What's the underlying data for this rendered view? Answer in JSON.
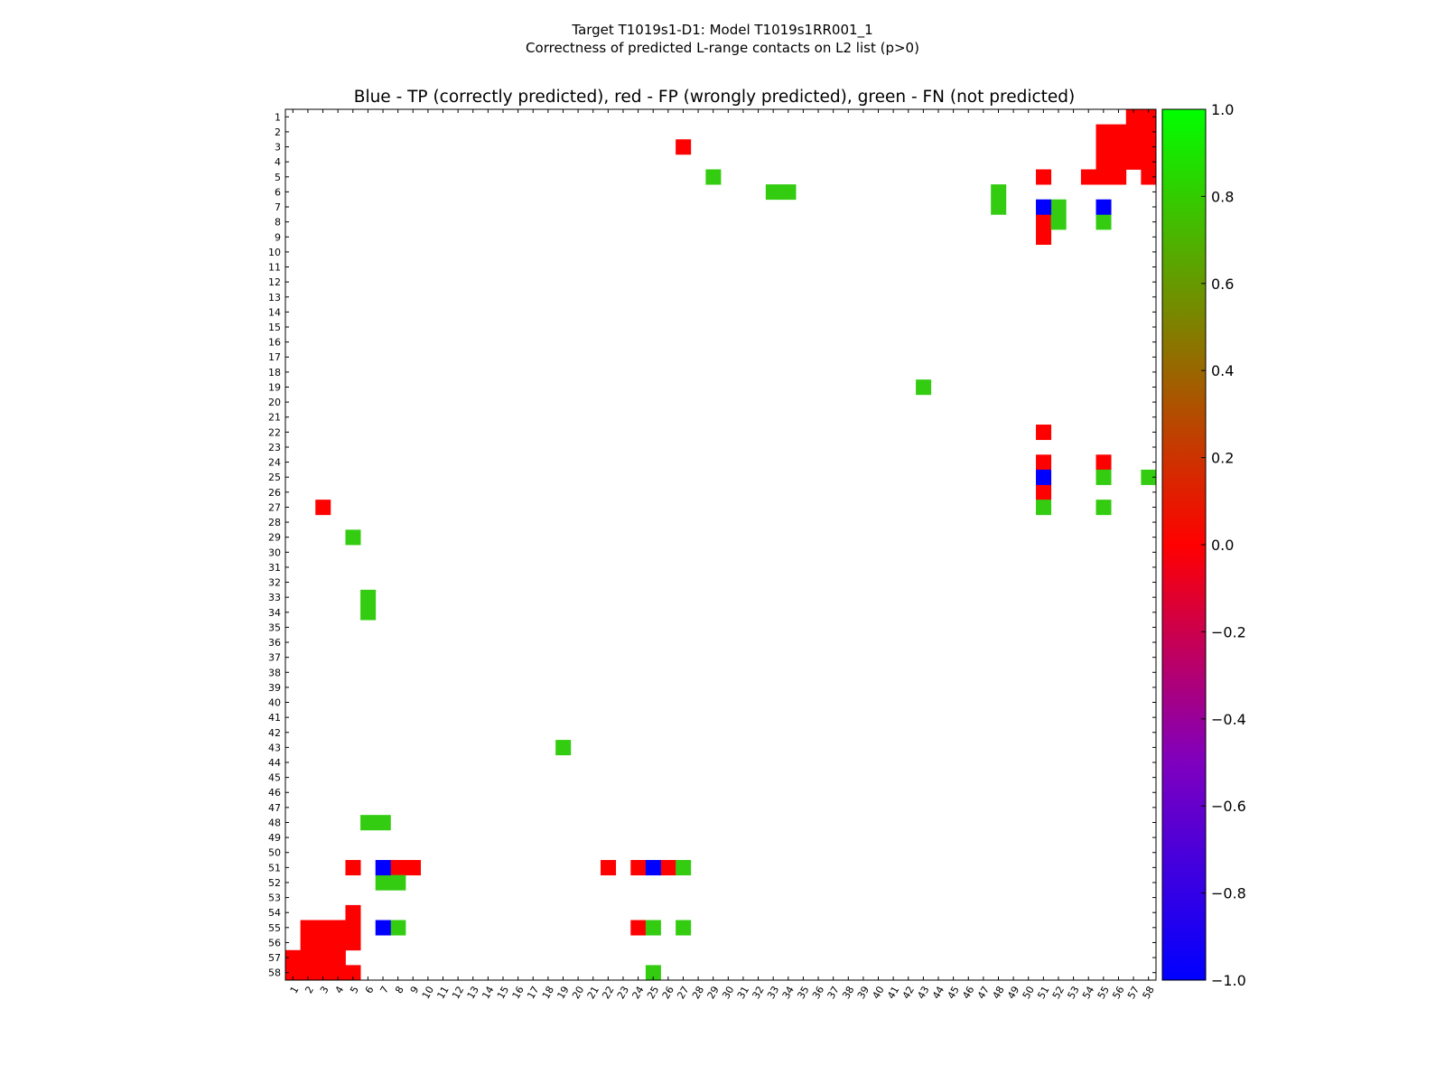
{
  "header": {
    "title_line1": "Target T1019s1-D1: Model T1019s1RR001_1",
    "title_line2": "Correctness of predicted L-range contacts on L2 list (p>0)"
  },
  "chart_data": {
    "type": "heatmap",
    "title": "Blue - TP (correctly predicted), red - FP (wrongly predicted), green - FN (not predicted)",
    "n": 58,
    "x_ticks": [
      1,
      2,
      3,
      4,
      5,
      6,
      7,
      8,
      9,
      10,
      11,
      12,
      13,
      14,
      15,
      16,
      17,
      18,
      19,
      20,
      21,
      22,
      23,
      24,
      25,
      26,
      27,
      28,
      29,
      30,
      31,
      32,
      33,
      34,
      35,
      36,
      37,
      38,
      39,
      40,
      41,
      42,
      43,
      44,
      45,
      46,
      47,
      48,
      49,
      50,
      51,
      52,
      53,
      54,
      55,
      56,
      57,
      58
    ],
    "y_ticks": [
      1,
      2,
      3,
      4,
      5,
      6,
      7,
      8,
      9,
      10,
      11,
      12,
      13,
      14,
      15,
      16,
      17,
      18,
      19,
      20,
      21,
      22,
      23,
      24,
      25,
      26,
      27,
      28,
      29,
      30,
      31,
      32,
      33,
      34,
      35,
      36,
      37,
      38,
      39,
      40,
      41,
      42,
      43,
      44,
      45,
      46,
      47,
      48,
      49,
      50,
      51,
      52,
      53,
      54,
      55,
      56,
      57,
      58
    ],
    "colorbar": {
      "min": -1.0,
      "max": 1.0,
      "ticks": [
        "1.0",
        "0.8",
        "0.6",
        "0.4",
        "0.2",
        "0.0",
        "−0.2",
        "−0.4",
        "−0.6",
        "−0.8",
        "−1.0"
      ],
      "tick_values": [
        1.0,
        0.8,
        0.6,
        0.4,
        0.2,
        0.0,
        -0.2,
        -0.4,
        -0.6,
        -0.8,
        -1.0
      ]
    },
    "legend": {
      "TP": "Blue",
      "FP": "Red",
      "FN": "Green"
    },
    "colors": {
      "TP": "#0000ff",
      "FP": "#ff0000",
      "FN": "#33cc11"
    },
    "cells": {
      "TP": [
        [
          51,
          7
        ],
        [
          55,
          7
        ],
        [
          51,
          25
        ],
        [
          7,
          51
        ],
        [
          25,
          51
        ],
        [
          7,
          55
        ]
      ],
      "FP": [
        [
          58,
          1
        ],
        [
          57,
          1
        ],
        [
          56,
          2
        ],
        [
          57,
          2
        ],
        [
          58,
          2
        ],
        [
          56,
          3
        ],
        [
          57,
          3
        ],
        [
          58,
          3
        ],
        [
          27,
          3
        ],
        [
          56,
          4
        ],
        [
          57,
          4
        ],
        [
          58,
          4
        ],
        [
          51,
          5
        ],
        [
          54,
          5
        ],
        [
          55,
          5
        ],
        [
          56,
          5
        ],
        [
          58,
          5
        ],
        [
          51,
          8
        ],
        [
          51,
          9
        ],
        [
          51,
          22
        ],
        [
          51,
          24
        ],
        [
          55,
          24
        ],
        [
          51,
          26
        ],
        [
          3,
          27
        ],
        [
          5,
          51
        ],
        [
          8,
          51
        ],
        [
          9,
          51
        ],
        [
          22,
          51
        ],
        [
          24,
          51
        ],
        [
          26,
          51
        ],
        [
          5,
          54
        ],
        [
          2,
          55
        ],
        [
          3,
          55
        ],
        [
          4,
          55
        ],
        [
          5,
          55
        ],
        [
          24,
          55
        ],
        [
          2,
          56
        ],
        [
          3,
          56
        ],
        [
          4,
          56
        ],
        [
          5,
          56
        ],
        [
          1,
          57
        ],
        [
          2,
          57
        ],
        [
          3,
          57
        ],
        [
          4,
          57
        ],
        [
          1,
          58
        ],
        [
          2,
          58
        ],
        [
          3,
          58
        ],
        [
          4,
          58
        ],
        [
          5,
          58
        ],
        [
          55,
          2
        ],
        [
          55,
          3
        ],
        [
          55,
          4
        ]
      ],
      "FN": [
        [
          29,
          5
        ],
        [
          33,
          6
        ],
        [
          34,
          6
        ],
        [
          48,
          6
        ],
        [
          48,
          7
        ],
        [
          52,
          7
        ],
        [
          52,
          8
        ],
        [
          55,
          8
        ],
        [
          43,
          19
        ],
        [
          55,
          25
        ],
        [
          58,
          25
        ],
        [
          51,
          27
        ],
        [
          55,
          27
        ],
        [
          5,
          29
        ],
        [
          6,
          33
        ],
        [
          6,
          34
        ],
        [
          19,
          43
        ],
        [
          6,
          48
        ],
        [
          7,
          48
        ],
        [
          7,
          52
        ],
        [
          8,
          52
        ],
        [
          27,
          51
        ],
        [
          8,
          55
        ],
        [
          25,
          55
        ],
        [
          27,
          55
        ],
        [
          25,
          58
        ]
      ]
    }
  }
}
